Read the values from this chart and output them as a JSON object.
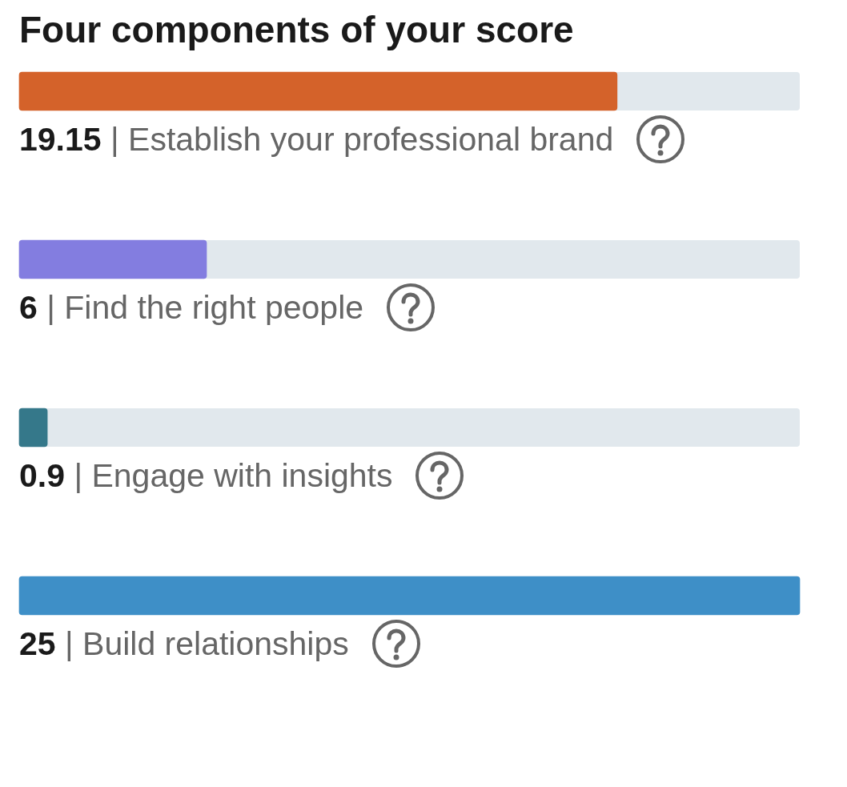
{
  "chart_data": {
    "type": "bar",
    "orientation": "horizontal",
    "title": "Four components of your score",
    "categories": [
      "| Establish your professional brand",
      "| Find the right people",
      "| Engage with insights",
      "| Build relationships"
    ],
    "values": [
      19.15,
      6,
      0.9,
      25
    ],
    "data_labels": true,
    "colors": [
      "#d4622a",
      "#837de0",
      "#35788a",
      "#3e8fc7"
    ],
    "tick_labels": false
  }
}
